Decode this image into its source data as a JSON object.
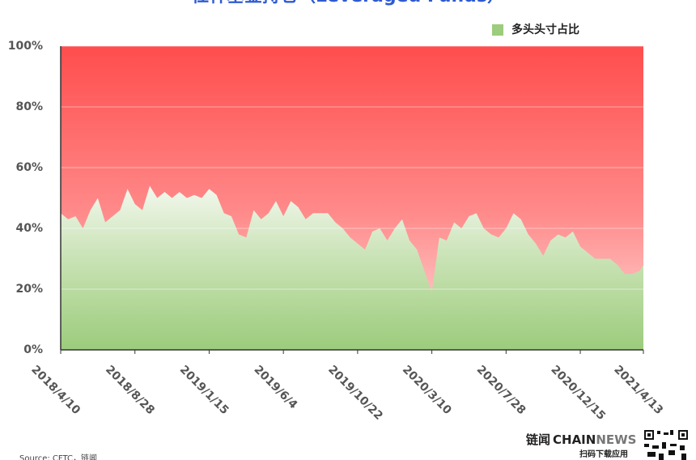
{
  "chart_data": {
    "type": "area",
    "title": "杠杆基金持仓（Leveraged Funds）",
    "x": [
      "2018/4/10",
      "2018/4/24",
      "2018/5/8",
      "2018/5/22",
      "2018/6/5",
      "2018/6/19",
      "2018/7/3",
      "2018/7/17",
      "2018/7/31",
      "2018/8/14",
      "2018/8/28",
      "2018/9/11",
      "2018/9/25",
      "2018/10/9",
      "2018/10/23",
      "2018/11/6",
      "2018/11/20",
      "2018/12/4",
      "2018/12/18",
      "2019/1/1",
      "2019/1/15",
      "2019/1/29",
      "2019/2/12",
      "2019/2/26",
      "2019/3/12",
      "2019/3/26",
      "2019/4/9",
      "2019/4/23",
      "2019/5/7",
      "2019/5/21",
      "2019/6/4",
      "2019/6/18",
      "2019/7/2",
      "2019/7/16",
      "2019/7/30",
      "2019/8/13",
      "2019/8/27",
      "2019/9/10",
      "2019/9/24",
      "2019/10/8",
      "2019/10/22",
      "2019/11/5",
      "2019/11/19",
      "2019/12/3",
      "2019/12/17",
      "2019/12/31",
      "2020/1/14",
      "2020/1/28",
      "2020/2/11",
      "2020/2/25",
      "2020/3/10",
      "2020/3/24",
      "2020/4/7",
      "2020/4/21",
      "2020/5/5",
      "2020/5/19",
      "2020/6/2",
      "2020/6/16",
      "2020/6/30",
      "2020/7/14",
      "2020/7/28",
      "2020/8/11",
      "2020/8/25",
      "2020/9/8",
      "2020/9/22",
      "2020/10/6",
      "2020/10/20",
      "2020/11/3",
      "2020/11/17",
      "2020/12/1",
      "2020/12/15",
      "2020/12/29",
      "2021/1/12",
      "2021/1/26",
      "2021/2/9",
      "2021/2/23",
      "2021/3/9",
      "2021/3/23",
      "2021/4/6",
      "2021/4/13"
    ],
    "series": [
      {
        "name": "多头头寸占比",
        "color": "#9ccc7c",
        "values": [
          45,
          43,
          44,
          40,
          46,
          50,
          42,
          44,
          46,
          53,
          48,
          46,
          54,
          50,
          52,
          50,
          52,
          50,
          51,
          50,
          53,
          51,
          45,
          44,
          38,
          37,
          46,
          43,
          45,
          49,
          44,
          49,
          47,
          43,
          45,
          45,
          45,
          42,
          40,
          37,
          35,
          33,
          39,
          40,
          36,
          40,
          43,
          36,
          33,
          26,
          19,
          37,
          36,
          42,
          40,
          44,
          45,
          40,
          38,
          37,
          40,
          45,
          43,
          38,
          35,
          31,
          36,
          38,
          37,
          39,
          34,
          32,
          30,
          30,
          30,
          28,
          25,
          25,
          26,
          28
        ]
      }
    ],
    "background_color": "#ff4d4d",
    "ylim": [
      0,
      100
    ],
    "yticks": [
      {
        "value": 0,
        "label": "0%"
      },
      {
        "value": 20,
        "label": "20%"
      },
      {
        "value": 40,
        "label": "40%"
      },
      {
        "value": 60,
        "label": "60%"
      },
      {
        "value": 80,
        "label": "80%"
      },
      {
        "value": 100,
        "label": "100%"
      }
    ],
    "xticks": [
      "2018/4/10",
      "2018/8/28",
      "2019/1/15",
      "2019/6/4",
      "2019/10/22",
      "2020/3/10",
      "2020/7/28",
      "2020/12/15",
      "2021/4/13"
    ],
    "grid": true,
    "legend": "top-right",
    "source": "Source: CFTC，链闻",
    "logo": {
      "cn": "链闻",
      "chain": "CHAIN",
      "news": "NEWS",
      "slogan": "扫码下载应用"
    }
  }
}
